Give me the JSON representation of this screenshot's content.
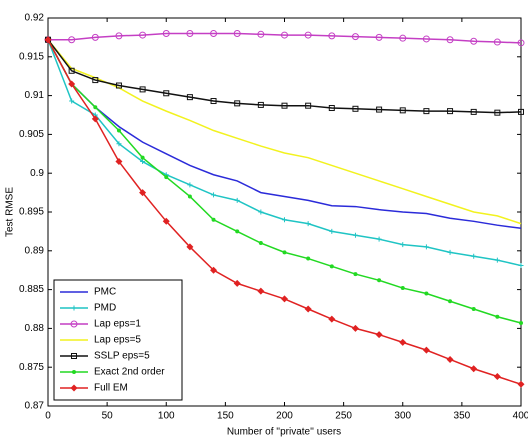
{
  "chart_data": {
    "type": "line",
    "xlabel": "Number of ''private'' users",
    "ylabel": "Test RMSE",
    "x": [
      0,
      20,
      40,
      60,
      80,
      100,
      120,
      140,
      160,
      180,
      200,
      220,
      240,
      260,
      280,
      300,
      320,
      340,
      360,
      380,
      400
    ],
    "xlim": [
      0,
      400
    ],
    "xticks": [
      0,
      50,
      100,
      150,
      200,
      250,
      300,
      350,
      400
    ],
    "ylim": [
      0.87,
      0.92
    ],
    "yticks": [
      0.87,
      0.875,
      0.88,
      0.885,
      0.89,
      0.895,
      0.9,
      0.905,
      0.91,
      0.915,
      0.92
    ],
    "legend": "lower left",
    "series": [
      {
        "name": "PMC",
        "color": "#2b2bd9",
        "marker": "none",
        "values": [
          0.9172,
          0.9115,
          0.9085,
          0.906,
          0.904,
          0.9025,
          0.901,
          0.8998,
          0.899,
          0.8975,
          0.897,
          0.8965,
          0.8958,
          0.8957,
          0.8953,
          0.895,
          0.8948,
          0.8942,
          0.8938,
          0.8933,
          0.8929
        ]
      },
      {
        "name": "PMD",
        "color": "#1fc4c4",
        "marker": "plus",
        "values": [
          0.9172,
          0.9093,
          0.9075,
          0.9038,
          0.9015,
          0.8998,
          0.8985,
          0.8972,
          0.8965,
          0.895,
          0.894,
          0.8935,
          0.8925,
          0.892,
          0.8915,
          0.8908,
          0.8905,
          0.8898,
          0.8893,
          0.8888,
          0.8881
        ]
      },
      {
        "name": "Lap eps=1",
        "color": "#c43fc4",
        "marker": "circle",
        "values": [
          0.9172,
          0.9172,
          0.9175,
          0.9177,
          0.9178,
          0.918,
          0.918,
          0.918,
          0.918,
          0.9179,
          0.9178,
          0.9178,
          0.9177,
          0.9176,
          0.9175,
          0.9174,
          0.9173,
          0.9172,
          0.917,
          0.9169,
          0.9168
        ]
      },
      {
        "name": "Lap eps=5",
        "color": "#f2f21f",
        "marker": "none",
        "values": [
          0.9172,
          0.9135,
          0.9123,
          0.911,
          0.9093,
          0.908,
          0.9068,
          0.9055,
          0.9045,
          0.9035,
          0.9026,
          0.902,
          0.901,
          0.9,
          0.899,
          0.898,
          0.897,
          0.896,
          0.895,
          0.8945,
          0.8935
        ]
      },
      {
        "name": "SSLP eps=5",
        "color": "#111111",
        "marker": "square",
        "values": [
          0.9172,
          0.9132,
          0.912,
          0.9113,
          0.9108,
          0.9103,
          0.9098,
          0.9093,
          0.909,
          0.9088,
          0.9087,
          0.9087,
          0.9084,
          0.9083,
          0.9082,
          0.9081,
          0.908,
          0.908,
          0.9079,
          0.9078,
          0.9079
        ]
      },
      {
        "name": "Exact 2nd order",
        "color": "#22d922",
        "marker": "dot",
        "values": [
          0.9172,
          0.9115,
          0.9085,
          0.9055,
          0.902,
          0.8995,
          0.897,
          0.894,
          0.8925,
          0.891,
          0.8898,
          0.889,
          0.888,
          0.887,
          0.8862,
          0.8852,
          0.8845,
          0.8835,
          0.8825,
          0.8815,
          0.8807
        ]
      },
      {
        "name": "Full EM",
        "color": "#e02222",
        "marker": "diamond",
        "values": [
          0.9172,
          0.9115,
          0.907,
          0.9015,
          0.8975,
          0.8938,
          0.8905,
          0.8875,
          0.8858,
          0.8848,
          0.8838,
          0.8825,
          0.8812,
          0.88,
          0.8792,
          0.8782,
          0.8772,
          0.876,
          0.8748,
          0.8738,
          0.8728
        ]
      }
    ]
  }
}
